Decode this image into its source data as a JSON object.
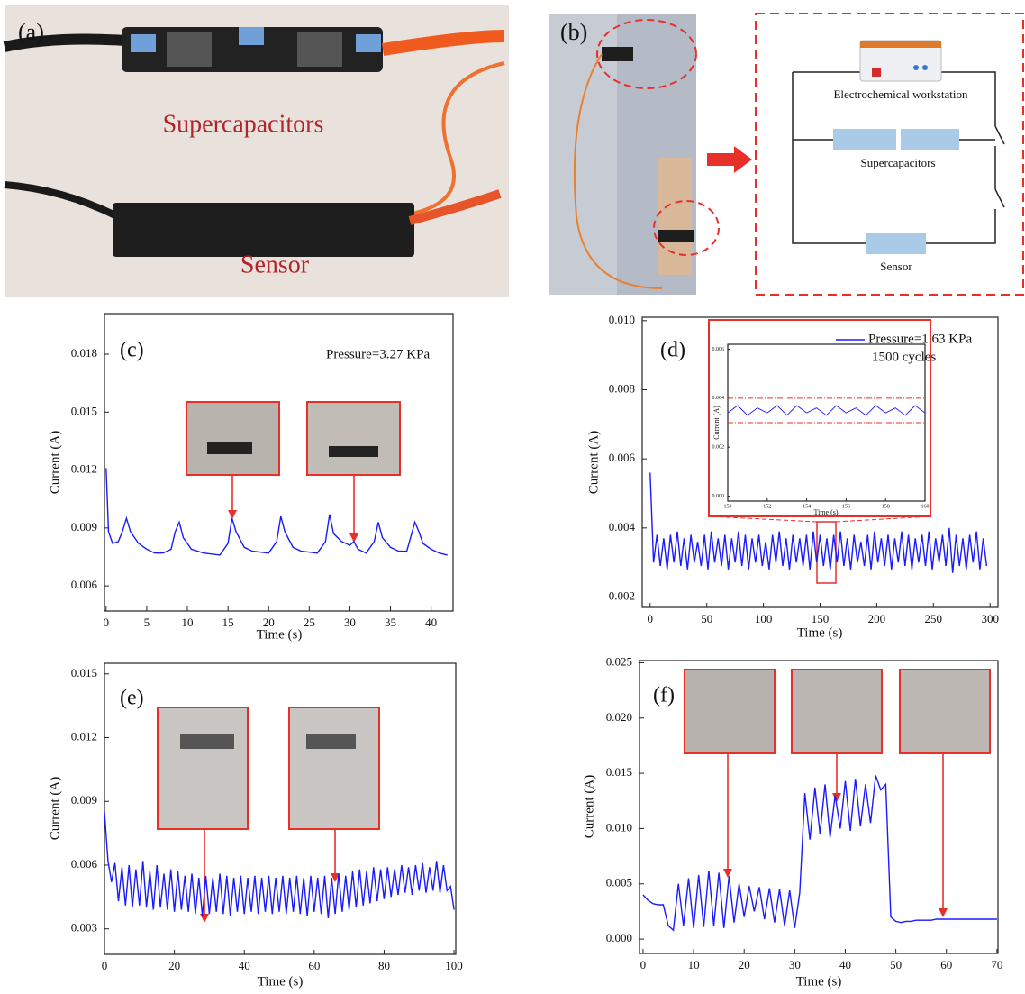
{
  "photos": {
    "a": {
      "label": "(a)",
      "top_text": "Supercapacitors",
      "bottom_text": "Sensor"
    },
    "b": {
      "label": "(b)",
      "workstation": "Electrochemical workstation",
      "supercapacitors": "Supercapacitors",
      "sensor": "Sensor"
    }
  },
  "chart_data": [
    {
      "type": "line",
      "panel_label": "(c)",
      "annotation": "Pressure=3.27 KPa",
      "xlabel": "Time (s)",
      "ylabel": "Current (A)",
      "color": "#1a1aff",
      "x": [
        0,
        0.3,
        0.8,
        1.5,
        2,
        2.5,
        3,
        4,
        5,
        6,
        7,
        8,
        8.5,
        9,
        9.5,
        10.5,
        12,
        14,
        15,
        15.5,
        16,
        17,
        18,
        20,
        21,
        21.5,
        22,
        23,
        24,
        26,
        27,
        27.5,
        28,
        29,
        30,
        30.5,
        31,
        32,
        33,
        33.5,
        34,
        35,
        36,
        37,
        38,
        38.5,
        39,
        40,
        41,
        42
      ],
      "values": [
        0.0121,
        0.0088,
        0.0082,
        0.0083,
        0.0088,
        0.0095,
        0.0088,
        0.0082,
        0.0079,
        0.0077,
        0.0077,
        0.0079,
        0.0088,
        0.0093,
        0.0085,
        0.0079,
        0.0077,
        0.0076,
        0.0082,
        0.0095,
        0.0088,
        0.008,
        0.0078,
        0.0077,
        0.0083,
        0.0096,
        0.0088,
        0.008,
        0.0078,
        0.0077,
        0.0083,
        0.0097,
        0.0087,
        0.0083,
        0.0081,
        0.0083,
        0.0079,
        0.0077,
        0.0083,
        0.0093,
        0.0085,
        0.008,
        0.0078,
        0.0078,
        0.0093,
        0.0088,
        0.0082,
        0.0079,
        0.0077,
        0.0076
      ],
      "xlim": [
        -0.2,
        42.7
      ],
      "ylim": [
        0.0047,
        0.0201
      ],
      "xticks": [
        0,
        5,
        10,
        15,
        20,
        25,
        30,
        35,
        40
      ],
      "yticks": [
        0.006,
        0.009,
        0.012,
        0.015,
        0.018
      ]
    },
    {
      "type": "line",
      "panel_label": "(d)",
      "annotation": "1500 cycles",
      "xlabel": "Time (s)",
      "ylabel": "Current (A)",
      "x": [
        0,
        3,
        6,
        9,
        12,
        15,
        18,
        21,
        24,
        27,
        30,
        33,
        36,
        39,
        42,
        45,
        48,
        51,
        54,
        57,
        60,
        63,
        66,
        69,
        72,
        75,
        78,
        81,
        84,
        87,
        90,
        93,
        96,
        99,
        102,
        105,
        108,
        111,
        114,
        117,
        120,
        123,
        126,
        129,
        132,
        135,
        138,
        141,
        144,
        147,
        150,
        153,
        156,
        159,
        162,
        165,
        168,
        171,
        174,
        177,
        180,
        183,
        186,
        189,
        192,
        195,
        198,
        201,
        204,
        207,
        210,
        213,
        216,
        219,
        222,
        225,
        228,
        231,
        234,
        237,
        240,
        243,
        246,
        249,
        252,
        255,
        258,
        261,
        264,
        267,
        270,
        273,
        276,
        279,
        282,
        285,
        288,
        291,
        294,
        297
      ],
      "series": [
        {
          "name": "Pressure=1.63 KPa",
          "color": "#1a1aff",
          "values": [
            0.0056,
            0.003,
            0.0038,
            0.0029,
            0.0037,
            0.0028,
            0.0038,
            0.003,
            0.0039,
            0.0029,
            0.0037,
            0.0028,
            0.0038,
            0.003,
            0.0036,
            0.0029,
            0.0038,
            0.0028,
            0.0039,
            0.003,
            0.0037,
            0.0029,
            0.0038,
            0.0028,
            0.0037,
            0.003,
            0.0039,
            0.0029,
            0.0038,
            0.0028,
            0.0037,
            0.003,
            0.0038,
            0.0029,
            0.0036,
            0.0028,
            0.0038,
            0.003,
            0.0039,
            0.0029,
            0.0037,
            0.0028,
            0.0038,
            0.003,
            0.0037,
            0.0029,
            0.0038,
            0.0028,
            0.0039,
            0.003,
            0.0038,
            0.0029,
            0.0037,
            0.0028,
            0.0038,
            0.003,
            0.0039,
            0.0029,
            0.0037,
            0.0028,
            0.0038,
            0.003,
            0.0036,
            0.0029,
            0.0038,
            0.0028,
            0.0039,
            0.003,
            0.0037,
            0.0029,
            0.0038,
            0.0028,
            0.0037,
            0.003,
            0.0039,
            0.0029,
            0.0038,
            0.0028,
            0.0037,
            0.003,
            0.0038,
            0.0029,
            0.0039,
            0.0028,
            0.0037,
            0.003,
            0.0038,
            0.0029,
            0.004,
            0.0027,
            0.0038,
            0.0029,
            0.0037,
            0.0028,
            0.0038,
            0.003,
            0.0039,
            0.0028,
            0.0037,
            0.0029
          ]
        }
      ],
      "xlim": [
        -7,
        307
      ],
      "ylim": [
        0.0017,
        0.0101
      ],
      "xticks": [
        0,
        50,
        100,
        150,
        200,
        250,
        300
      ],
      "yticks": [
        0.002,
        0.004,
        0.006,
        0.008,
        {
          "value": 0.01,
          "label": "0.010"
        }
      ]
    },
    {
      "type": "line",
      "xlabel": "Time (s)",
      "ylabel": "Current (A)",
      "color": "#1a1aff",
      "x": [
        150,
        150.5,
        151,
        151.5,
        152,
        152.5,
        153,
        153.5,
        154,
        154.5,
        155,
        155.5,
        156,
        156.5,
        157,
        157.5,
        158,
        158.5,
        159,
        159.5,
        160
      ],
      "values": [
        0.0034,
        0.0037,
        0.0033,
        0.0036,
        0.0034,
        0.0037,
        0.0033,
        0.0037,
        0.0034,
        0.0036,
        0.0033,
        0.0037,
        0.0034,
        0.0036,
        0.0033,
        0.0037,
        0.0034,
        0.0036,
        0.0033,
        0.0037,
        0.0034
      ],
      "hlines": [
        0.004,
        0.003
      ],
      "hline_color": "#e8302b",
      "xlim": [
        150,
        160
      ],
      "ylim": [
        -0.0002,
        0.0062
      ],
      "xticks": [
        150,
        152,
        154,
        156,
        158,
        160
      ],
      "yticks": [
        {
          "value": 0,
          "label": "0.000"
        },
        0.002,
        0.004,
        0.006
      ]
    },
    {
      "type": "line",
      "panel_label": "(e)",
      "xlabel": "Time (s)",
      "ylabel": "Current (A)",
      "color": "#1a1aff",
      "x": [
        0,
        1,
        2,
        3,
        4,
        5,
        6,
        7,
        8,
        9,
        10,
        11,
        12,
        13,
        14,
        15,
        16,
        17,
        18,
        19,
        20,
        21,
        22,
        23,
        24,
        25,
        26,
        27,
        28,
        29,
        30,
        31,
        32,
        33,
        34,
        35,
        36,
        37,
        38,
        39,
        40,
        41,
        42,
        43,
        44,
        45,
        46,
        47,
        48,
        49,
        50,
        51,
        52,
        53,
        54,
        55,
        56,
        57,
        58,
        59,
        60,
        61,
        62,
        63,
        64,
        65,
        66,
        67,
        68,
        69,
        70,
        71,
        72,
        73,
        74,
        75,
        76,
        77,
        78,
        79,
        80,
        81,
        82,
        83,
        84,
        85,
        86,
        87,
        88,
        89,
        90,
        91,
        92,
        93,
        94,
        95,
        96,
        97,
        98,
        99,
        100
      ],
      "values": [
        0.0085,
        0.0062,
        0.0052,
        0.0061,
        0.0043,
        0.0059,
        0.0041,
        0.006,
        0.004,
        0.0058,
        0.0041,
        0.0062,
        0.004,
        0.0057,
        0.0039,
        0.006,
        0.004,
        0.0056,
        0.0039,
        0.0058,
        0.0038,
        0.0057,
        0.0039,
        0.0055,
        0.0038,
        0.0056,
        0.0037,
        0.0054,
        0.0036,
        0.0055,
        0.0037,
        0.0054,
        0.0038,
        0.0056,
        0.0037,
        0.0055,
        0.0036,
        0.0054,
        0.0038,
        0.0055,
        0.0037,
        0.0054,
        0.0038,
        0.0055,
        0.0037,
        0.0054,
        0.0038,
        0.0055,
        0.0037,
        0.0054,
        0.0038,
        0.0055,
        0.0037,
        0.0054,
        0.0038,
        0.0055,
        0.0037,
        0.0054,
        0.0036,
        0.0055,
        0.0038,
        0.0054,
        0.0037,
        0.0055,
        0.0035,
        0.0054,
        0.0037,
        0.0056,
        0.0038,
        0.0055,
        0.0039,
        0.0057,
        0.004,
        0.0058,
        0.0041,
        0.0057,
        0.0042,
        0.0059,
        0.0043,
        0.0058,
        0.0044,
        0.0059,
        0.0045,
        0.0058,
        0.0046,
        0.006,
        0.0047,
        0.0059,
        0.0046,
        0.006,
        0.0048,
        0.0061,
        0.0047,
        0.0059,
        0.0048,
        0.0062,
        0.0047,
        0.006,
        0.0048,
        0.005,
        0.0039
      ],
      "xlim": [
        0,
        100.5
      ],
      "ylim": [
        0.0018,
        0.0155
      ],
      "xticks": [
        0,
        20,
        40,
        60,
        80,
        100
      ],
      "yticks": [
        0.003,
        0.006,
        0.009,
        0.012,
        0.015
      ]
    },
    {
      "type": "line",
      "panel_label": "(f)",
      "xlabel": "Time (s)",
      "ylabel": "Current (A)",
      "color": "#1a1aff",
      "x": [
        0,
        1,
        2,
        3,
        4,
        5,
        6,
        7,
        8,
        9,
        10,
        11,
        12,
        13,
        14,
        15,
        16,
        17,
        18,
        19,
        20,
        21,
        22,
        23,
        24,
        25,
        26,
        27,
        28,
        29,
        30,
        31,
        32,
        33,
        34,
        35,
        36,
        37,
        38,
        39,
        40,
        41,
        42,
        43,
        44,
        45,
        46,
        47,
        48,
        49,
        50,
        51,
        52,
        53,
        54,
        55,
        56,
        57,
        58,
        59,
        60,
        61,
        62,
        63,
        64,
        65,
        66,
        67,
        68,
        69,
        70
      ],
      "values": [
        0.004,
        0.0035,
        0.0032,
        0.0031,
        0.0031,
        0.0012,
        0.0008,
        0.005,
        0.0012,
        0.0055,
        0.001,
        0.0058,
        0.0011,
        0.0062,
        0.0012,
        0.006,
        0.001,
        0.0057,
        0.0015,
        0.005,
        0.002,
        0.0048,
        0.0025,
        0.0047,
        0.0018,
        0.0046,
        0.0015,
        0.0045,
        0.0012,
        0.0044,
        0.001,
        0.0042,
        0.0132,
        0.009,
        0.0137,
        0.0095,
        0.014,
        0.0092,
        0.013,
        0.01,
        0.0143,
        0.0098,
        0.0145,
        0.0102,
        0.014,
        0.0105,
        0.0148,
        0.0135,
        0.014,
        0.002,
        0.0016,
        0.0015,
        0.0016,
        0.0016,
        0.0017,
        0.0017,
        0.0017,
        0.0017,
        0.0018,
        0.0018,
        0.0018,
        0.0018,
        0.0018,
        0.0018,
        0.0018,
        0.0018,
        0.0018,
        0.0018,
        0.0018,
        0.0018,
        0.0018
      ],
      "xlim": [
        -0.7,
        70.2
      ],
      "ylim": [
        -0.0013,
        0.0252
      ],
      "xticks": [
        0,
        10,
        20,
        30,
        40,
        50,
        60,
        70
      ],
      "yticks": [
        {
          "value": 0,
          "label": "0.000"
        },
        0.005,
        {
          "value": 0.01,
          "label": "0.010"
        },
        0.015,
        {
          "value": 0.02,
          "label": "0.020"
        },
        0.025
      ]
    }
  ]
}
